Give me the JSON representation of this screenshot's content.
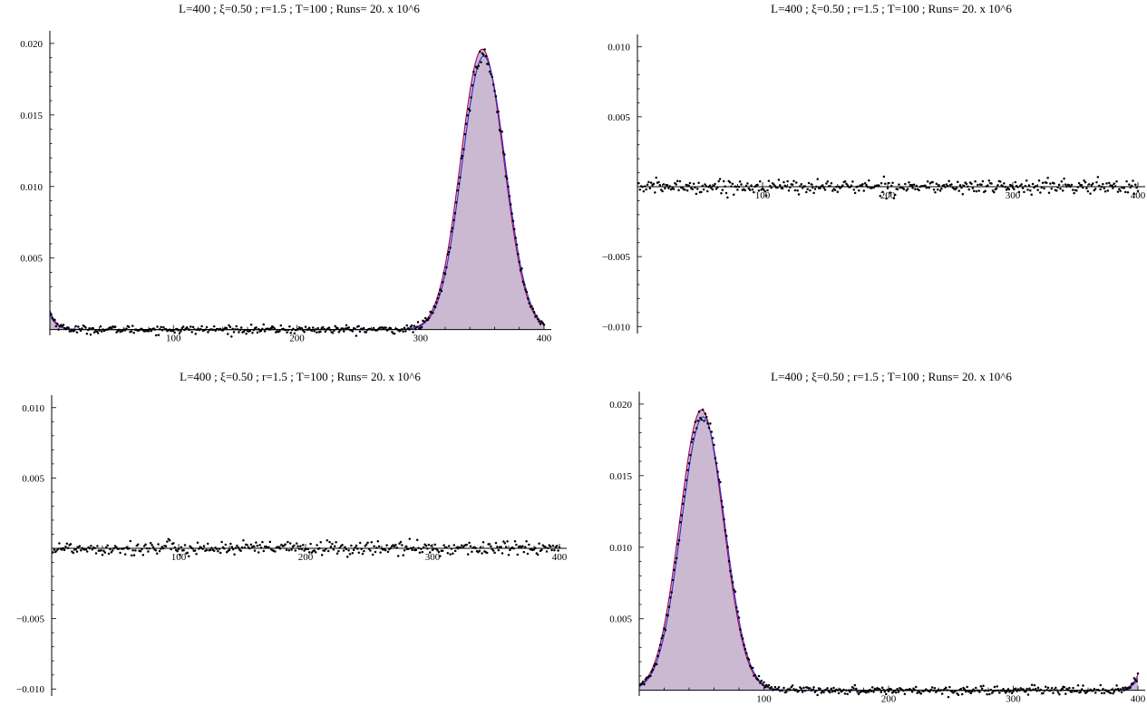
{
  "chart_data": [
    {
      "type": "area",
      "title": "L=400 ; ξ=0.50 ; r=1.5 ; T=100 ; Runs= 20. x 10^6",
      "xlim": [
        0,
        400
      ],
      "ylim": [
        -0.0004,
        0.0205
      ],
      "xticks": [
        100,
        200,
        300,
        400
      ],
      "yticks": [
        0.005,
        0.01,
        0.015,
        0.02
      ],
      "ytick_labels": [
        "0.005",
        "0.010",
        "0.015",
        "0.020"
      ],
      "peak": {
        "center": 350,
        "height": 0.0196
      },
      "curve_samples": [
        {
          "x": 0,
          "y": 0.0011
        },
        {
          "x": 10,
          "y": 0.0002
        },
        {
          "x": 100,
          "y": 0.0
        },
        {
          "x": 200,
          "y": 0.0
        },
        {
          "x": 290,
          "y": 0.0
        },
        {
          "x": 300,
          "y": 0.0008
        },
        {
          "x": 320,
          "y": 0.0062
        },
        {
          "x": 335,
          "y": 0.0148
        },
        {
          "x": 350,
          "y": 0.0196
        },
        {
          "x": 365,
          "y": 0.0148
        },
        {
          "x": 380,
          "y": 0.0062
        },
        {
          "x": 400,
          "y": 0.0008
        }
      ],
      "noise": 0.0003,
      "grid": false,
      "legend": "none"
    },
    {
      "type": "scatter",
      "title": "L=400 ; ξ=0.50 ; r=1.5 ; T=100 ; Runs= 20. x 10^6",
      "xlim": [
        0,
        400
      ],
      "ylim": [
        -0.0105,
        0.0105
      ],
      "xticks": [
        100,
        200,
        300,
        400
      ],
      "yticks": [
        -0.01,
        -0.005,
        0.005,
        0.01
      ],
      "ytick_labels": [
        "-0.010",
        "-0.005",
        "0.005",
        "0.010"
      ],
      "curve_samples": [
        {
          "x": 0,
          "y": 0.0
        },
        {
          "x": 400,
          "y": 0.0
        }
      ],
      "noise": 0.0003,
      "grid": false,
      "legend": "none"
    },
    {
      "type": "scatter",
      "title": "L=400 ; ξ=0.50 ; r=1.5 ; T=100 ; Runs= 20. x 10^6",
      "xlim": [
        0,
        400
      ],
      "ylim": [
        -0.0105,
        0.0105
      ],
      "xticks": [
        100,
        200,
        300,
        400
      ],
      "yticks": [
        -0.01,
        -0.005,
        0.005,
        0.01
      ],
      "ytick_labels": [
        "-0.010",
        "-0.005",
        "0.005",
        "0.010"
      ],
      "curve_samples": [
        {
          "x": 0,
          "y": 0.0
        },
        {
          "x": 400,
          "y": 0.0
        }
      ],
      "noise": 0.0003,
      "grid": false,
      "legend": "none"
    },
    {
      "type": "area",
      "title": "L=400 ; ξ=0.50 ; r=1.5 ; T=100 ; Runs= 20. x 10^6",
      "xlim": [
        0,
        400
      ],
      "ylim": [
        -0.0004,
        0.0205
      ],
      "xticks": [
        100,
        200,
        300,
        400
      ],
      "yticks": [
        0.005,
        0.01,
        0.015,
        0.02
      ],
      "ytick_labels": [
        "0.005",
        "0.010",
        "0.015",
        "0.020"
      ],
      "peak": {
        "center": 50,
        "height": 0.0196
      },
      "curve_samples": [
        {
          "x": 0,
          "y": 0.0008
        },
        {
          "x": 20,
          "y": 0.0062
        },
        {
          "x": 35,
          "y": 0.0148
        },
        {
          "x": 50,
          "y": 0.0196
        },
        {
          "x": 65,
          "y": 0.0148
        },
        {
          "x": 80,
          "y": 0.0062
        },
        {
          "x": 100,
          "y": 0.0008
        },
        {
          "x": 110,
          "y": 0.0
        },
        {
          "x": 200,
          "y": 0.0
        },
        {
          "x": 300,
          "y": 0.0
        },
        {
          "x": 390,
          "y": 0.0002
        },
        {
          "x": 400,
          "y": 0.0011
        }
      ],
      "noise": 0.0003,
      "grid": false,
      "legend": "none"
    }
  ],
  "colors": {
    "fill": "#cbb9d2",
    "exact_curve": "#b0004a",
    "fit_curve": "#2b2bd8",
    "points": "#000000",
    "axis": "#000000"
  }
}
